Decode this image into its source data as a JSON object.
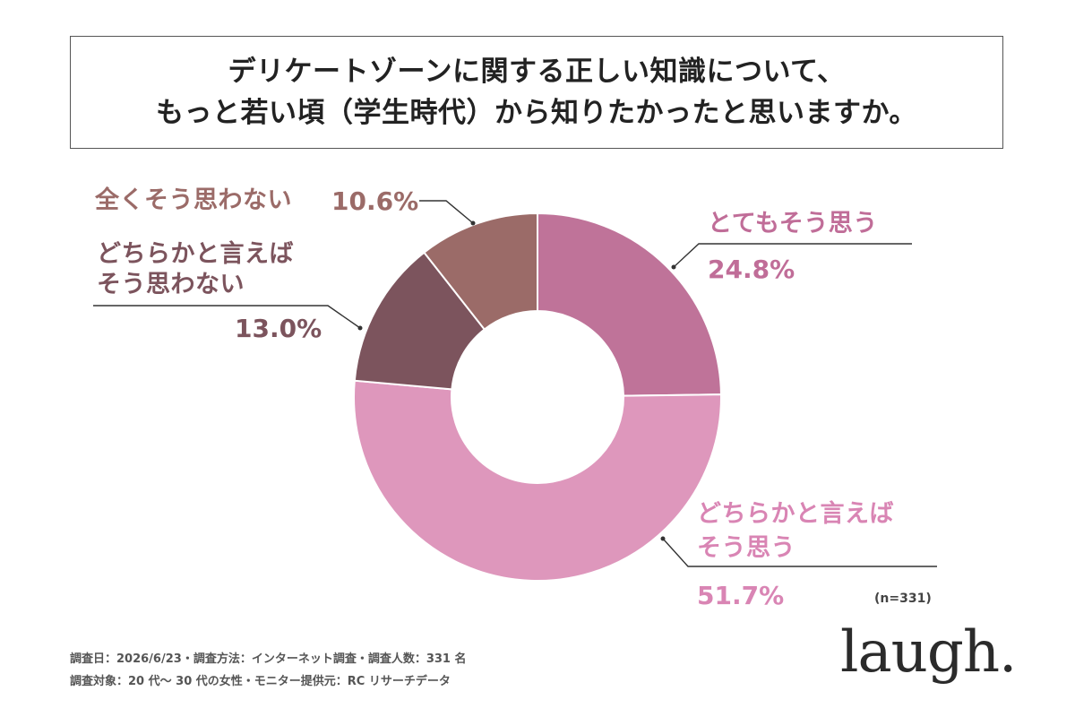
{
  "title": {
    "line1": "デリケートゾーンに関する正しい知識について、",
    "line2": "もっと若い頃（学生時代）から知りたかったと思いますか。"
  },
  "chart_data": {
    "type": "pie",
    "style": "donut",
    "slices": [
      {
        "label_lines": [
          "とてもそう思う"
        ],
        "value": 24.8,
        "value_label": "24.8%",
        "color": "#bf7399"
      },
      {
        "label_lines": [
          "どちらかと言えば",
          "そう思う"
        ],
        "value": 51.7,
        "value_label": "51.7%",
        "color": "#de97bc"
      },
      {
        "label_lines": [
          "どちらかと言えば",
          "そう思わない"
        ],
        "value": 13.0,
        "value_label": "13.0%",
        "color": "#7c545d"
      },
      {
        "label_lines": [
          "全くそう思わない"
        ],
        "value": 10.6,
        "value_label": "10.6%",
        "color": "#9b6b68"
      }
    ]
  },
  "sample_note": "(n=331)",
  "footer": {
    "line1": "調査日：2026/6/23・調査方法：インターネット調査・調査人数：331 名",
    "line2": "調査対象：20 代〜 30 代の女性・モニター提供元：RC リサーチデータ"
  },
  "logo_text": "laugh."
}
